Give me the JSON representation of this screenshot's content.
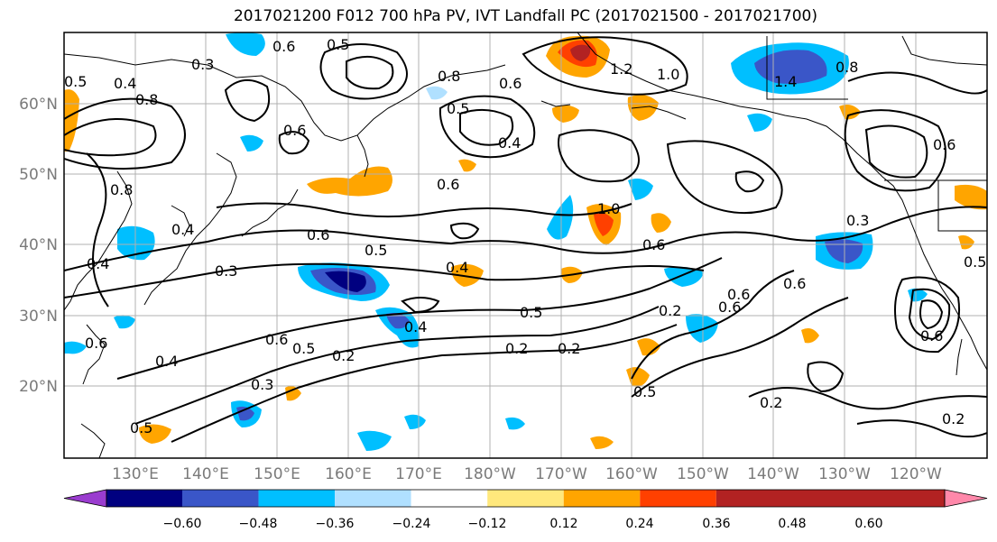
{
  "title": "2017021200 F012 700 hPa PV, IVT Landfall PC (2017021500 - 2017021700)",
  "map": {
    "lat_labels": [
      "60°N",
      "50°N",
      "40°N",
      "30°N",
      "20°N"
    ],
    "lon_labels": [
      "130°E",
      "140°E",
      "150°E",
      "160°E",
      "170°E",
      "180°W",
      "170°W",
      "160°W",
      "150°W",
      "140°W",
      "130°W",
      "120°W"
    ],
    "contour_labels": [
      "0.3",
      "0.6",
      "0.5",
      "0.8",
      "0.4",
      "0.8",
      "1.2",
      "1.0",
      "0.5",
      "0.6",
      "0.4",
      "0.6",
      "1.4",
      "0.8",
      "0.5",
      "0.8",
      "0.6",
      "0.6",
      "0.4",
      "0.3",
      "0.6",
      "0.5",
      "0.4",
      "1.0",
      "0.6",
      "0.6",
      "0.3",
      "0.6",
      "0.6",
      "0.5",
      "0.2",
      "0.6",
      "0.4",
      "0.5",
      "0.2",
      "0.2",
      "0.2",
      "0.5",
      "0.6",
      "0.4",
      "0.4",
      "0.3",
      "0.5",
      "0.5",
      "0.2",
      "0.2",
      "0.6"
    ],
    "colors": {
      "land_outline": "#000000",
      "grid": "#b0b0b0"
    }
  },
  "colorbar": {
    "levels": [
      "−0.60",
      "−0.48",
      "−0.36",
      "−0.24",
      "−0.12",
      "0.12",
      "0.24",
      "0.36",
      "0.48",
      "0.60"
    ],
    "colors": [
      "#9a3ccf",
      "#000080",
      "#3a56c8",
      "#00bfff",
      "#b0e0ff",
      "#ffffff",
      "#ffe87c",
      "#ffa500",
      "#ff4000",
      "#b22222",
      "#ff88aa"
    ]
  }
}
